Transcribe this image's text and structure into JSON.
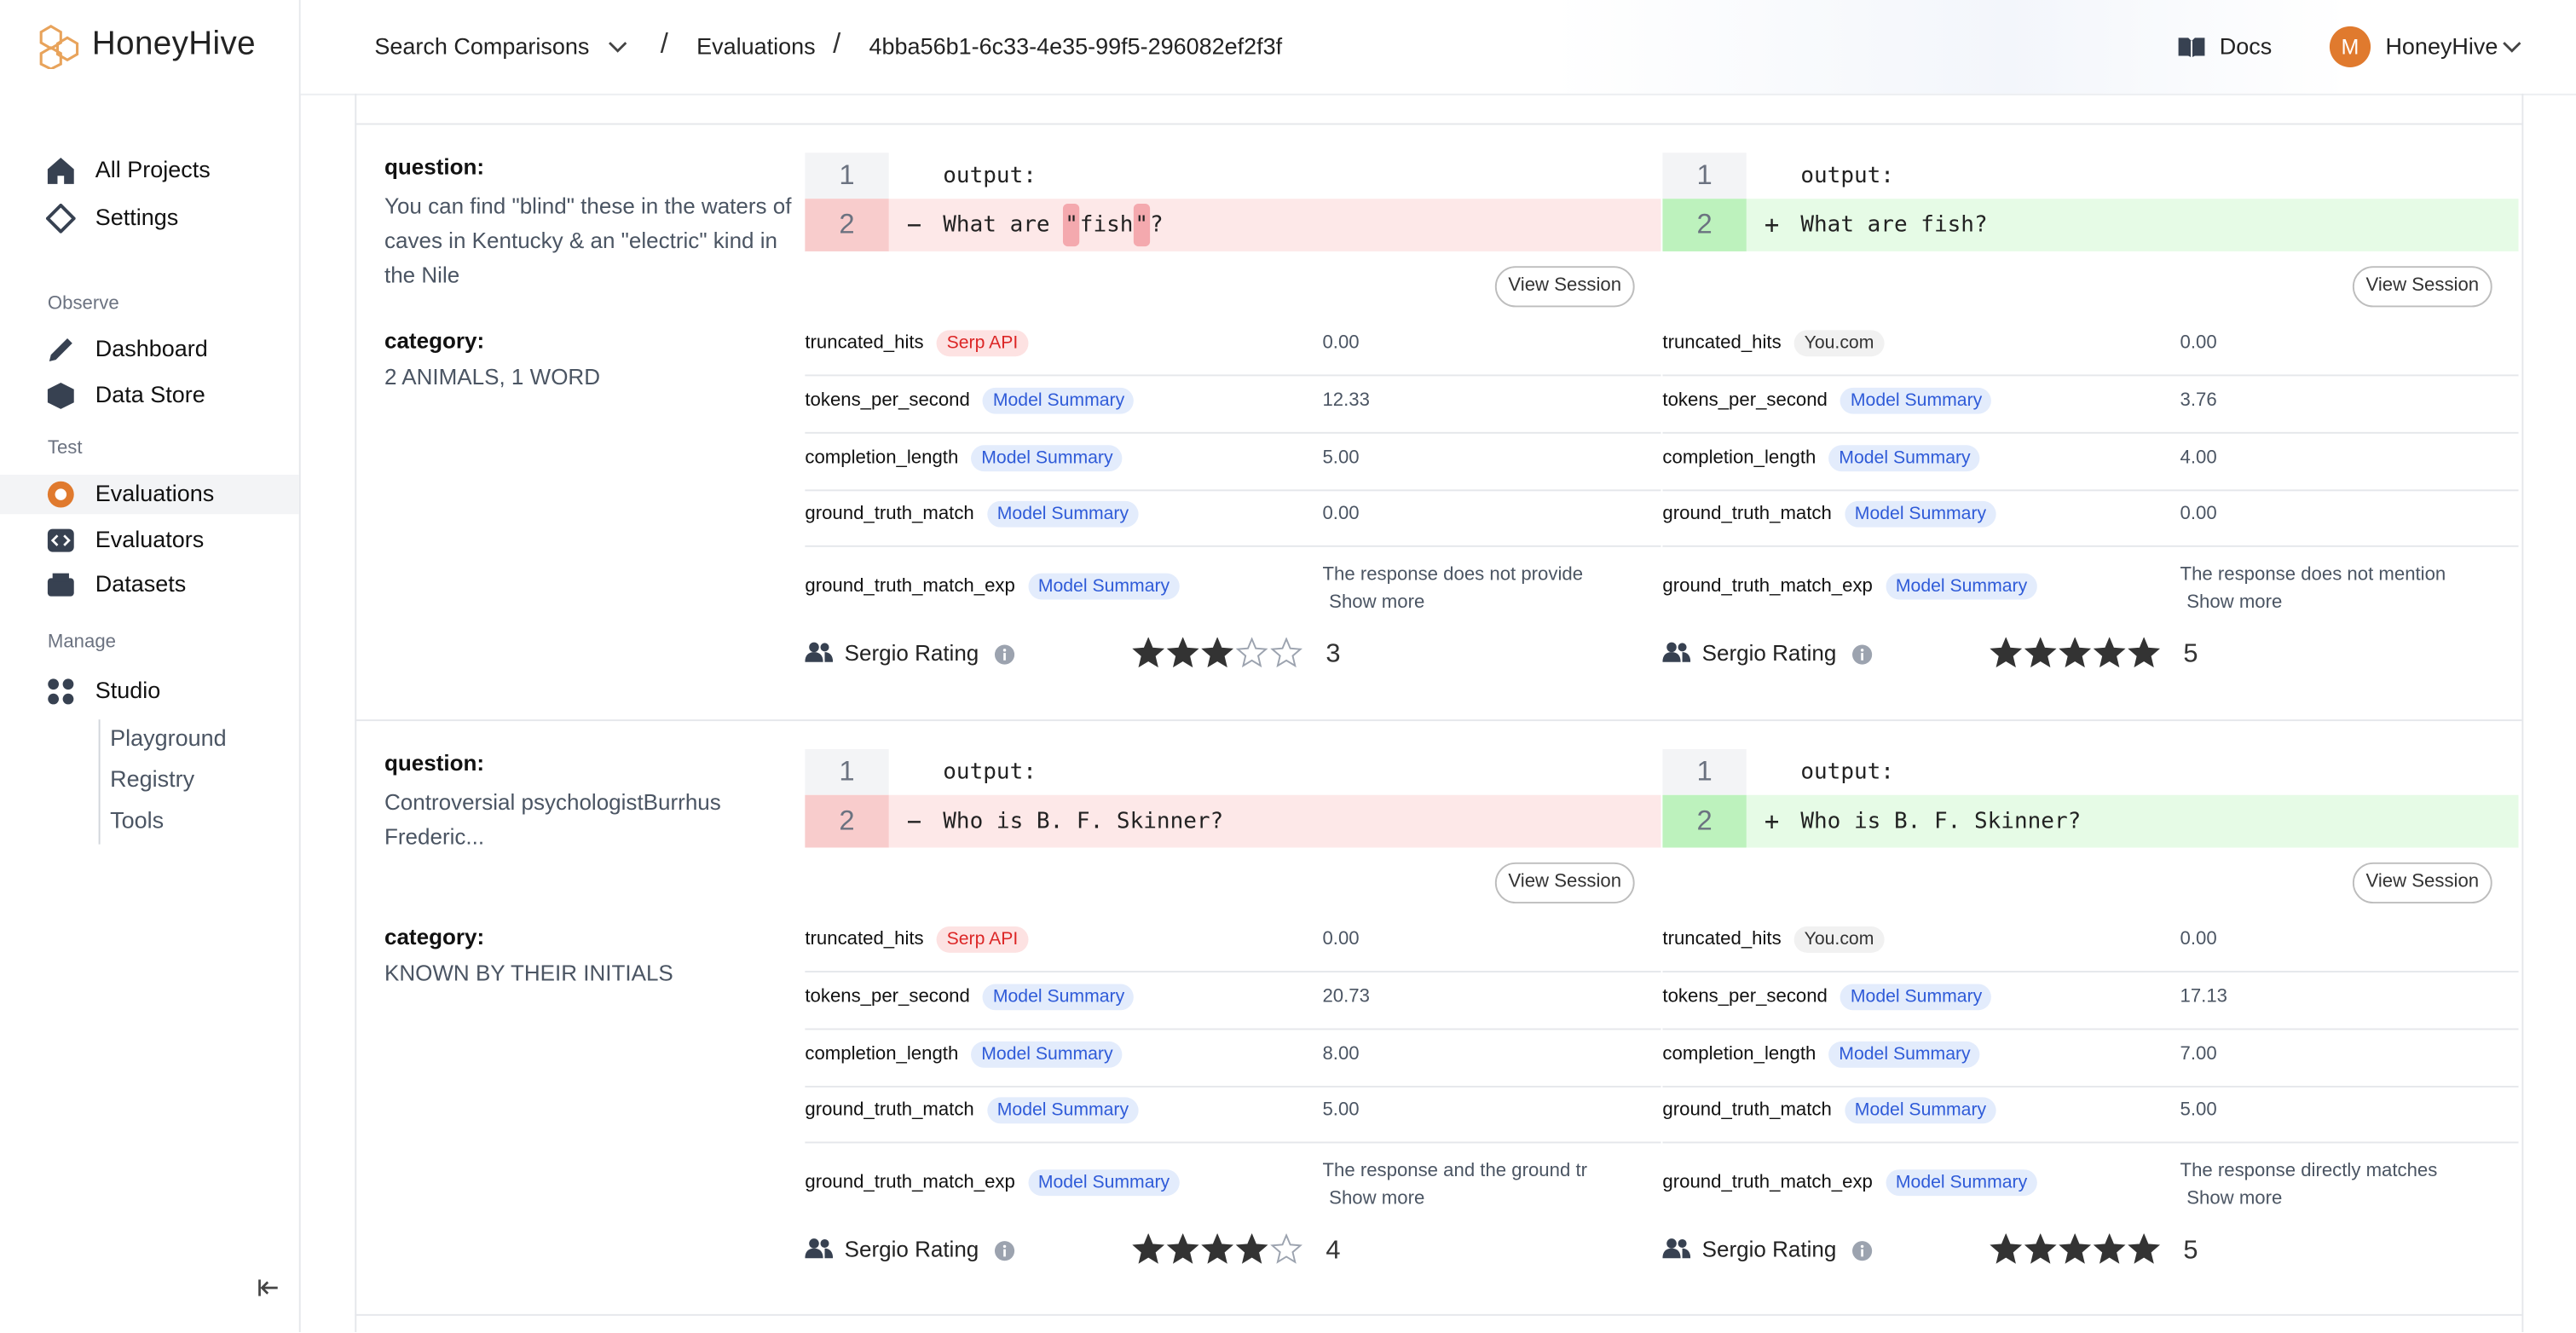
{
  "brand": "HoneyHive",
  "sidebar": {
    "top": [
      "All Projects",
      "Settings"
    ],
    "sections": [
      {
        "title": "Observe",
        "items": [
          "Dashboard",
          "Data Store"
        ]
      },
      {
        "title": "Test",
        "items": [
          "Evaluations",
          "Evaluators",
          "Datasets"
        ]
      },
      {
        "title": "Manage",
        "items": [
          "Studio"
        ]
      }
    ],
    "studio_sub": [
      "Playground",
      "Registry",
      "Tools"
    ]
  },
  "header": {
    "breadcrumb": [
      "Search Comparisons",
      "Evaluations",
      "4bba56b1-6c33-4e35-99f5-296082ef2f3f"
    ],
    "separator": "/",
    "docs": "Docs",
    "user_initial": "M",
    "user": "HoneyHive"
  },
  "rows": [
    {
      "question_label": "question:",
      "question": "You can find \"blind\" these in the waters of caves in Kentucky & an \"electric\" kind in the Nile",
      "category_label": "category:",
      "category": "2 ANIMALS, 1 WORD",
      "sides": [
        {
          "lines": [
            {
              "num": 1,
              "sign": null,
              "segments": [
                {
                  "t": "output:"
                }
              ]
            },
            {
              "num": 2,
              "sign": "−",
              "segments": [
                {
                  "t": "What are "
                },
                {
                  "t": "\"",
                  "hl": true
                },
                {
                  "t": "fish"
                },
                {
                  "t": "\"",
                  "hl": true
                },
                {
                  "t": "?"
                }
              ]
            }
          ],
          "line_bg": "#fde8e8",
          "num_bg": "#f8cccc",
          "hl_bg": "#f4a9ae",
          "button": "View Session",
          "metrics": [
            {
              "name": "truncated_hits",
              "tag": "Serp API",
              "tag_color": "#dc2626",
              "tag_bg": "#fde2e2",
              "value": "0.00"
            },
            {
              "name": "tokens_per_second",
              "tag": "Model Summary",
              "tag_color": "#2f5bd8",
              "tag_bg": "#e3ecfc",
              "value": "12.33"
            },
            {
              "name": "completion_length",
              "tag": "Model Summary",
              "tag_color": "#2f5bd8",
              "tag_bg": "#e3ecfc",
              "value": "5.00"
            },
            {
              "name": "ground_truth_match",
              "tag": "Model Summary",
              "tag_color": "#2f5bd8",
              "tag_bg": "#e3ecfc",
              "value": "0.00"
            },
            {
              "name": "ground_truth_match_exp",
              "tag": "Model Summary",
              "tag_color": "#2f5bd8",
              "tag_bg": "#e3ecfc",
              "value": "The response does not provide",
              "show_more": "Show more"
            }
          ],
          "rating_label": "Sergio Rating",
          "rating": 3
        },
        {
          "lines": [
            {
              "num": 1,
              "sign": null,
              "segments": [
                {
                  "t": "output:"
                }
              ]
            },
            {
              "num": 2,
              "sign": "+",
              "segments": [
                {
                  "t": "What are fish?"
                }
              ]
            }
          ],
          "line_bg": "#e6fbe6",
          "num_bg": "#bdf2bd",
          "hl_bg": "#9fe6a0",
          "button": "View Session",
          "metrics": [
            {
              "name": "truncated_hits",
              "tag": "You.com",
              "tag_color": "#333333",
              "tag_bg": "#f1f1f1",
              "value": "0.00"
            },
            {
              "name": "tokens_per_second",
              "tag": "Model Summary",
              "tag_color": "#2f5bd8",
              "tag_bg": "#e3ecfc",
              "value": "3.76"
            },
            {
              "name": "completion_length",
              "tag": "Model Summary",
              "tag_color": "#2f5bd8",
              "tag_bg": "#e3ecfc",
              "value": "4.00"
            },
            {
              "name": "ground_truth_match",
              "tag": "Model Summary",
              "tag_color": "#2f5bd8",
              "tag_bg": "#e3ecfc",
              "value": "0.00"
            },
            {
              "name": "ground_truth_match_exp",
              "tag": "Model Summary",
              "tag_color": "#2f5bd8",
              "tag_bg": "#e3ecfc",
              "value": "The response does not mention",
              "show_more": "Show more"
            }
          ],
          "rating_label": "Sergio Rating",
          "rating": 5
        }
      ]
    },
    {
      "question_label": "question:",
      "question": "Controversial psychologistBurrhus Frederic...",
      "category_label": "category:",
      "category": "KNOWN BY THEIR INITIALS",
      "sides": [
        {
          "lines": [
            {
              "num": 1,
              "sign": null,
              "segments": [
                {
                  "t": "output:"
                }
              ]
            },
            {
              "num": 2,
              "sign": "−",
              "segments": [
                {
                  "t": "Who is B. F. Skinner?"
                }
              ]
            }
          ],
          "line_bg": "#fde8e8",
          "num_bg": "#f8cccc",
          "hl_bg": "#f4a9ae",
          "button": "View Session",
          "metrics": [
            {
              "name": "truncated_hits",
              "tag": "Serp API",
              "tag_color": "#dc2626",
              "tag_bg": "#fde2e2",
              "value": "0.00"
            },
            {
              "name": "tokens_per_second",
              "tag": "Model Summary",
              "tag_color": "#2f5bd8",
              "tag_bg": "#e3ecfc",
              "value": "20.73"
            },
            {
              "name": "completion_length",
              "tag": "Model Summary",
              "tag_color": "#2f5bd8",
              "tag_bg": "#e3ecfc",
              "value": "8.00"
            },
            {
              "name": "ground_truth_match",
              "tag": "Model Summary",
              "tag_color": "#2f5bd8",
              "tag_bg": "#e3ecfc",
              "value": "5.00"
            },
            {
              "name": "ground_truth_match_exp",
              "tag": "Model Summary",
              "tag_color": "#2f5bd8",
              "tag_bg": "#e3ecfc",
              "value": "The response and the ground tr",
              "show_more": "Show more"
            }
          ],
          "rating_label": "Sergio Rating",
          "rating": 4
        },
        {
          "lines": [
            {
              "num": 1,
              "sign": null,
              "segments": [
                {
                  "t": "output:"
                }
              ]
            },
            {
              "num": 2,
              "sign": "+",
              "segments": [
                {
                  "t": "Who is B. F. Skinner?"
                }
              ]
            }
          ],
          "line_bg": "#e6fbe6",
          "num_bg": "#bdf2bd",
          "hl_bg": "#9fe6a0",
          "button": "View Session",
          "metrics": [
            {
              "name": "truncated_hits",
              "tag": "You.com",
              "tag_color": "#333333",
              "tag_bg": "#f1f1f1",
              "value": "0.00"
            },
            {
              "name": "tokens_per_second",
              "tag": "Model Summary",
              "tag_color": "#2f5bd8",
              "tag_bg": "#e3ecfc",
              "value": "17.13"
            },
            {
              "name": "completion_length",
              "tag": "Model Summary",
              "tag_color": "#2f5bd8",
              "tag_bg": "#e3ecfc",
              "value": "7.00"
            },
            {
              "name": "ground_truth_match",
              "tag": "Model Summary",
              "tag_color": "#2f5bd8",
              "tag_bg": "#e3ecfc",
              "value": "5.00"
            },
            {
              "name": "ground_truth_match_exp",
              "tag": "Model Summary",
              "tag_color": "#2f5bd8",
              "tag_bg": "#e3ecfc",
              "value": "The response directly matches",
              "show_more": "Show more"
            }
          ],
          "rating_label": "Sergio Rating",
          "rating": 5
        }
      ]
    }
  ]
}
